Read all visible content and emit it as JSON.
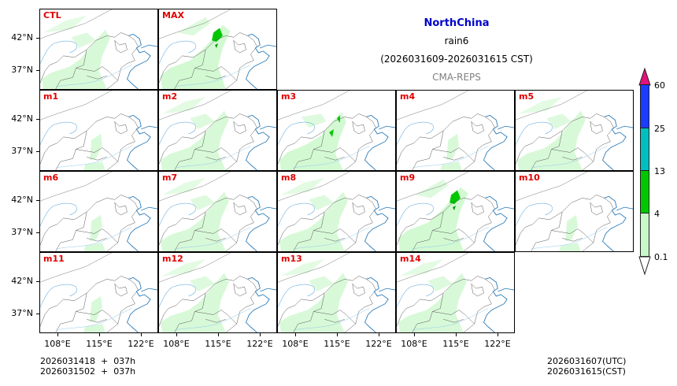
{
  "header": {
    "region": "NorthChina",
    "variable": "rain6",
    "period": "(2026031609-2026031615 CST)",
    "source": "CMA-REPS"
  },
  "axes": {
    "y_ticks": [
      "42°N",
      "37°N"
    ],
    "x_ticks": [
      "108°E",
      "115°E",
      "122°E"
    ]
  },
  "panels": [
    {
      "label": "CTL",
      "intensity": 1
    },
    {
      "label": "MAX",
      "intensity": 3
    },
    {
      "label": "m1",
      "intensity": 0
    },
    {
      "label": "m2",
      "intensity": 1
    },
    {
      "label": "m3",
      "intensity": 2
    },
    {
      "label": "m4",
      "intensity": 0
    },
    {
      "label": "m5",
      "intensity": 1
    },
    {
      "label": "m6",
      "intensity": 0
    },
    {
      "label": "m7",
      "intensity": 1
    },
    {
      "label": "m8",
      "intensity": 1
    },
    {
      "label": "m9",
      "intensity": 3
    },
    {
      "label": "m10",
      "intensity": 0
    },
    {
      "label": "m11",
      "intensity": 0
    },
    {
      "label": "m12",
      "intensity": 1
    },
    {
      "label": "m13",
      "intensity": 1
    },
    {
      "label": "m14",
      "intensity": 1
    }
  ],
  "colorbar": {
    "labels": [
      "60",
      "25",
      "13",
      "4",
      "0.1"
    ],
    "colors": {
      "over": "#e0137a",
      "c60": "#1c3cff",
      "c25": "#00bfbf",
      "c13": "#00c800",
      "c4": "#c8f7c8",
      "under": "#ffffff"
    }
  },
  "footer": {
    "left_line1": "2026031418  +  037h",
    "left_line2": "2026031502  +  037h",
    "right_line1": "2026031607(UTC)",
    "right_line2": "2026031615(CST)"
  },
  "chart_data": {
    "type": "heatmap",
    "title": "NorthChina rain6 (2026031609-2026031615 CST)",
    "subtitle": "CMA-REPS",
    "panels": [
      "CTL",
      "MAX",
      "m1",
      "m2",
      "m3",
      "m4",
      "m5",
      "m6",
      "m7",
      "m8",
      "m9",
      "m10",
      "m11",
      "m12",
      "m13",
      "m14"
    ],
    "xlabel": "",
    "ylabel": "",
    "x_ticks": [
      "108°E",
      "115°E",
      "122°E"
    ],
    "y_ticks": [
      "42°N",
      "37°N"
    ],
    "colorbar_levels": [
      0.1,
      4,
      13,
      25,
      60
    ],
    "colorbar_extend": "both",
    "init_times": [
      "2026031418 + 037h",
      "2026031502 + 037h"
    ],
    "valid_time": [
      "2026031607(UTC)",
      "2026031615(CST)"
    ]
  }
}
